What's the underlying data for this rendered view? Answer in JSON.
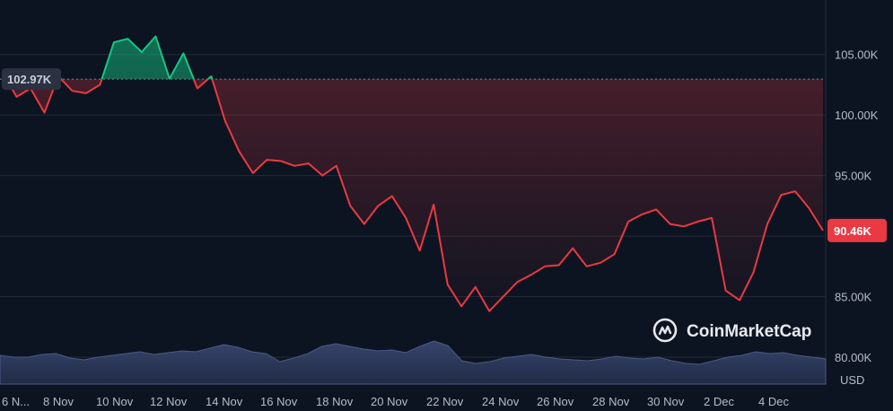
{
  "chart_data": {
    "type": "area",
    "currency_label": "USD",
    "x_ticks": [
      "6 N...",
      "8 Nov",
      "10 Nov",
      "12 Nov",
      "14 Nov",
      "16 Nov",
      "18 Nov",
      "20 Nov",
      "22 Nov",
      "24 Nov",
      "26 Nov",
      "28 Nov",
      "30 Nov",
      "2 Dec",
      "4 Dec"
    ],
    "y_ticks": [
      "105.00K",
      "100.00K",
      "95.00K",
      "90.00K",
      "85.00K",
      "80.00K"
    ],
    "y_tick_values": [
      105000,
      100000,
      95000,
      90000,
      85000,
      80000
    ],
    "ylim": [
      78000,
      109500
    ],
    "baseline": {
      "value": 102970,
      "label": "102.97K"
    },
    "last_price": {
      "value": 90460,
      "label": "90.46K"
    },
    "price_series": {
      "x": [
        "6 Nov",
        "6 Nov 12:00",
        "7 Nov",
        "7 Nov 12:00",
        "8 Nov",
        "8 Nov 12:00",
        "9 Nov",
        "9 Nov 12:00",
        "10 Nov",
        "10 Nov 12:00",
        "11 Nov",
        "11 Nov 12:00",
        "12 Nov",
        "12 Nov 12:00",
        "13 Nov",
        "13 Nov 12:00",
        "14 Nov",
        "14 Nov 12:00",
        "15 Nov",
        "15 Nov 12:00",
        "16 Nov",
        "16 Nov 12:00",
        "17 Nov",
        "17 Nov 12:00",
        "18 Nov",
        "18 Nov 12:00",
        "19 Nov",
        "19 Nov 12:00",
        "20 Nov",
        "20 Nov 12:00",
        "21 Nov",
        "21 Nov 12:00",
        "22 Nov",
        "22 Nov 12:00",
        "23 Nov",
        "23 Nov 12:00",
        "24 Nov",
        "24 Nov 12:00",
        "25 Nov",
        "25 Nov 12:00",
        "26 Nov",
        "26 Nov 12:00",
        "27 Nov",
        "27 Nov 12:00",
        "28 Nov",
        "28 Nov 12:00",
        "29 Nov",
        "29 Nov 12:00",
        "30 Nov",
        "30 Nov 12:00",
        "1 Dec",
        "1 Dec 12:00",
        "2 Dec",
        "2 Dec 12:00",
        "3 Dec",
        "3 Dec 12:00",
        "4 Dec",
        "4 Dec 12:00",
        "5 Dec",
        "5 Dec 12:00"
      ],
      "values": [
        103500,
        101500,
        102200,
        100200,
        103200,
        102000,
        101800,
        102500,
        106000,
        106300,
        105200,
        106500,
        103000,
        105100,
        102200,
        103200,
        99500,
        97000,
        95200,
        96300,
        96200,
        95800,
        96000,
        95000,
        95800,
        92500,
        91000,
        92500,
        93300,
        91500,
        88800,
        92600,
        86000,
        84200,
        85800,
        83800,
        85000,
        86200,
        86800,
        87500,
        87600,
        89000,
        87500,
        87800,
        88500,
        91200,
        91800,
        92200,
        91000,
        90800,
        91200,
        91500,
        85500,
        84700,
        87000,
        91000,
        93400,
        93700,
        92300,
        90460
      ]
    },
    "volume_series": [
      32,
      30,
      30,
      33,
      34,
      29,
      27,
      30,
      32,
      34,
      36,
      33,
      35,
      37,
      36,
      40,
      44,
      41,
      36,
      34,
      25,
      29,
      34,
      42,
      45,
      42,
      39,
      37,
      38,
      35,
      42,
      48,
      43,
      26,
      23,
      25,
      29,
      31,
      33,
      30,
      28,
      27,
      26,
      28,
      31,
      29,
      28,
      30,
      26,
      23,
      22,
      26,
      30,
      32,
      36,
      34,
      35,
      32,
      30,
      28
    ],
    "colors": {
      "up": "#16c784",
      "down": "#ea3943",
      "grid": "#222b3a",
      "baseline": "#7a8291",
      "volume": "#2d3a5c",
      "background": "#0d1421"
    }
  },
  "watermark": {
    "text": "CoinMarketCap",
    "icon": "coinmarketcap-logo-icon"
  }
}
